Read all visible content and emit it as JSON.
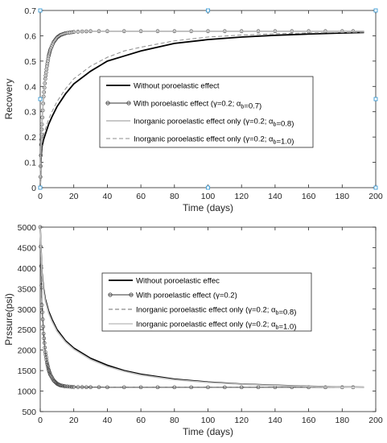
{
  "chart_data": [
    {
      "type": "line",
      "title": "",
      "xlabel": "Time (days)",
      "ylabel": "Recovery",
      "xlim": [
        0,
        200
      ],
      "ylim": [
        0,
        0.7
      ],
      "xticks": [
        "0",
        "20",
        "40",
        "60",
        "80",
        "100",
        "120",
        "140",
        "160",
        "180",
        "200"
      ],
      "yticks": [
        "0",
        "0.1",
        "0.2",
        "0.3",
        "0.4",
        "0.5",
        "0.6",
        "0.7"
      ],
      "grid": false,
      "legend_position": "center-right",
      "series": [
        {
          "name": "Without poroelastic effect",
          "style": "solid-thick",
          "color": "#000000",
          "x": [
            0,
            0.5,
            1,
            2,
            3,
            5,
            7,
            10,
            15,
            20,
            30,
            40,
            50,
            60,
            80,
            100,
            120,
            140,
            160,
            180,
            193
          ],
          "y": [
            0,
            0.12,
            0.16,
            0.19,
            0.21,
            0.25,
            0.28,
            0.32,
            0.37,
            0.41,
            0.46,
            0.5,
            0.52,
            0.54,
            0.57,
            0.585,
            0.595,
            0.602,
            0.607,
            0.611,
            0.613
          ]
        },
        {
          "name": "With poroelastic effect (γ=0.2; αb=0.7)",
          "style": "solid-circle-markers",
          "color": "#333333",
          "x": [
            0,
            0.5,
            1,
            2,
            3,
            4,
            5,
            6,
            8,
            10,
            12,
            15,
            20,
            25,
            30,
            40,
            60,
            80,
            100,
            120,
            140,
            160,
            180,
            193
          ],
          "y": [
            0,
            0.17,
            0.25,
            0.36,
            0.43,
            0.48,
            0.52,
            0.545,
            0.575,
            0.593,
            0.603,
            0.61,
            0.615,
            0.617,
            0.618,
            0.618,
            0.618,
            0.618,
            0.618,
            0.618,
            0.618,
            0.618,
            0.618,
            0.618
          ]
        },
        {
          "name": "Inorganic poroelastic effect only (γ=0.2; αb=0.8)",
          "style": "solid-thin-light",
          "color": "#b5b5b5",
          "x": [
            0,
            0.5,
            1,
            2,
            3,
            4,
            5,
            6,
            8,
            10,
            12,
            15,
            20,
            25,
            30,
            40,
            60,
            80,
            100,
            120,
            140,
            160,
            180,
            193
          ],
          "y": [
            0,
            0.17,
            0.25,
            0.36,
            0.43,
            0.48,
            0.52,
            0.545,
            0.575,
            0.593,
            0.603,
            0.61,
            0.615,
            0.617,
            0.618,
            0.618,
            0.618,
            0.618,
            0.618,
            0.618,
            0.618,
            0.618,
            0.618,
            0.618
          ]
        },
        {
          "name": "Inorganic poroelastic effect only (γ=0.2; αb=1.0)",
          "style": "dashed",
          "color": "#8c8c8c",
          "x": [
            0,
            0.5,
            1,
            2,
            3,
            5,
            7,
            10,
            15,
            20,
            30,
            40,
            50,
            60,
            80,
            100,
            120,
            140,
            160,
            180,
            193
          ],
          "y": [
            0,
            0.13,
            0.17,
            0.21,
            0.23,
            0.27,
            0.3,
            0.34,
            0.39,
            0.43,
            0.48,
            0.515,
            0.54,
            0.555,
            0.58,
            0.595,
            0.603,
            0.608,
            0.611,
            0.613,
            0.614
          ]
        }
      ]
    },
    {
      "type": "line",
      "title": "",
      "xlabel": "Time (days)",
      "ylabel": "Prssure(psi)",
      "xlim": [
        0,
        200
      ],
      "ylim": [
        500,
        5000
      ],
      "xticks": [
        "0",
        "20",
        "40",
        "60",
        "80",
        "100",
        "120",
        "140",
        "160",
        "180",
        "200"
      ],
      "yticks": [
        "500",
        "1000",
        "1500",
        "2000",
        "2500",
        "3000",
        "3500",
        "4000",
        "4500",
        "5000"
      ],
      "grid": false,
      "legend_position": "center-right",
      "series": [
        {
          "name": "Without poroelastic effec",
          "style": "solid-thick",
          "color": "#000000",
          "x": [
            0,
            1,
            2,
            3,
            5,
            7,
            10,
            15,
            20,
            30,
            40,
            50,
            60,
            80,
            100,
            120,
            140,
            160,
            180,
            193
          ],
          "y": [
            5000,
            3900,
            3500,
            3250,
            2950,
            2750,
            2500,
            2230,
            2050,
            1800,
            1630,
            1500,
            1410,
            1290,
            1220,
            1170,
            1140,
            1115,
            1100,
            1095
          ]
        },
        {
          "name": "With poroelastic effect (γ=0.2)",
          "style": "solid-circle-markers",
          "color": "#333333",
          "x": [
            0,
            1,
            2,
            3,
            4,
            5,
            6,
            8,
            10,
            12,
            15,
            20,
            25,
            30,
            40,
            60,
            80,
            100,
            120,
            140,
            160,
            180,
            193
          ],
          "y": [
            5000,
            3100,
            2400,
            1950,
            1700,
            1520,
            1400,
            1260,
            1180,
            1140,
            1115,
            1100,
            1097,
            1095,
            1093,
            1093,
            1093,
            1093,
            1093,
            1093,
            1093,
            1093,
            1093
          ]
        },
        {
          "name": "Inorganic poroelastic effect only (γ=0.2; αb=0.8)",
          "style": "dashed",
          "color": "#6e6e6e",
          "x": [
            0,
            1,
            2,
            3,
            4,
            5,
            6,
            8,
            10,
            12,
            15,
            20,
            25,
            30,
            40,
            60,
            80,
            100,
            120,
            140,
            160,
            180,
            193
          ],
          "y": [
            5000,
            3100,
            2400,
            1950,
            1700,
            1520,
            1400,
            1260,
            1180,
            1140,
            1115,
            1100,
            1097,
            1095,
            1093,
            1093,
            1093,
            1093,
            1093,
            1093,
            1093,
            1093,
            1093
          ]
        },
        {
          "name": "Inorganic poroelastic effect only (γ=0.2; αb=1.0)",
          "style": "solid-thin-light",
          "color": "#c4c4c4",
          "x": [
            0,
            1,
            2,
            3,
            5,
            7,
            10,
            15,
            20,
            30,
            40,
            50,
            60,
            80,
            100,
            120,
            140,
            160,
            180,
            193
          ],
          "y": [
            5000,
            3850,
            3450,
            3200,
            2900,
            2700,
            2460,
            2200,
            2020,
            1770,
            1600,
            1480,
            1390,
            1275,
            1210,
            1165,
            1135,
            1112,
            1098,
            1093
          ]
        }
      ]
    }
  ]
}
